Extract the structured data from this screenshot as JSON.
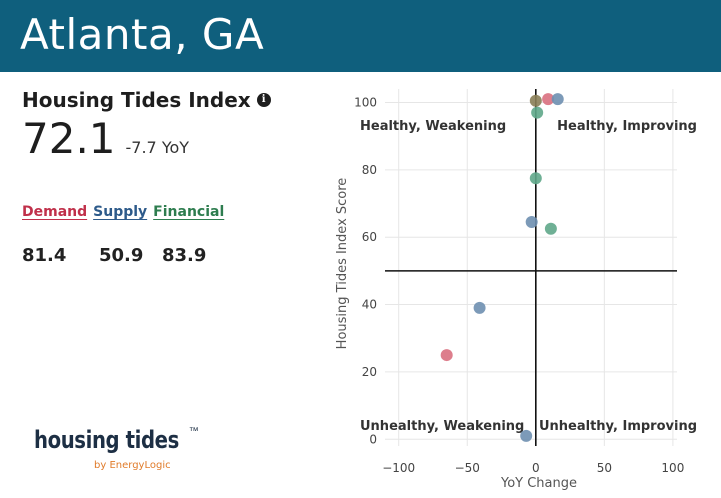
{
  "header": {
    "title": "Atlanta, GA",
    "bg_color": "#0f5f7d"
  },
  "index": {
    "title": "Housing Tides Index",
    "info_icon": "info-icon",
    "score": "72.1",
    "yoy": "-7.7 YoY"
  },
  "components": {
    "labels": [
      {
        "text": "Demand",
        "color": "#c0304a"
      },
      {
        "text": "Supply",
        "color": "#2d5a8a"
      },
      {
        "text": "Financial",
        "color": "#2e7d4f"
      }
    ],
    "values": [
      "81.4",
      "50.9",
      "83.9"
    ]
  },
  "logo": {
    "word": "housing tides",
    "mark": "™",
    "by": "by EnergyLogic"
  },
  "chart_data": {
    "type": "scatter",
    "xlabel": "YoY Change",
    "ylabel": "Housing Tides Index Score",
    "xlim": [
      -110,
      103
    ],
    "ylim": [
      -2,
      104
    ],
    "xticks": [
      -100,
      -50,
      0,
      50,
      100
    ],
    "yticks": [
      0,
      20,
      40,
      60,
      80,
      100
    ],
    "grid": true,
    "reference_lines": {
      "x": 0,
      "y": 50
    },
    "quadrant_labels": [
      "Healthy, Weakening",
      "Healthy, Improving",
      "Unhealthy, Weakening",
      "Unhealthy, Improving"
    ],
    "series": [
      {
        "color": "#d9707f",
        "points": [
          [
            9,
            101
          ],
          [
            -65,
            25
          ]
        ]
      },
      {
        "color": "#6e8fb0",
        "points": [
          [
            16,
            101
          ],
          [
            -3,
            64.5
          ],
          [
            -41,
            39
          ],
          [
            -7,
            1
          ]
        ]
      },
      {
        "color": "#5fa78a",
        "points": [
          [
            1,
            97
          ],
          [
            0,
            77.5
          ],
          [
            11,
            62.5
          ]
        ]
      },
      {
        "color": "#8a7e56",
        "points": [
          [
            0,
            100.5
          ]
        ]
      }
    ]
  }
}
